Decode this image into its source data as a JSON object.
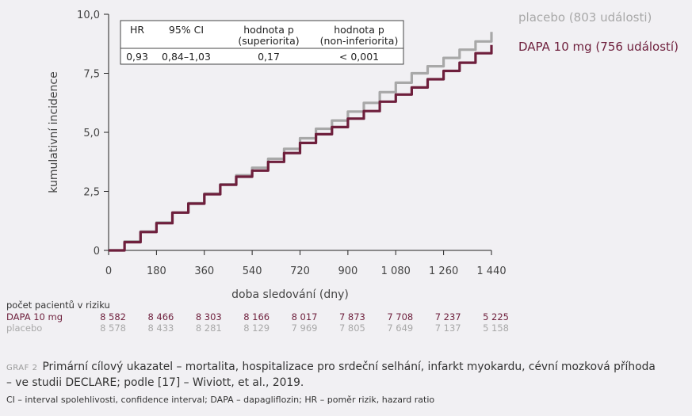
{
  "chart_data": {
    "type": "line",
    "xlabel": "doba sledování (dny)",
    "ylabel": "kumulativní incidence",
    "x_ticks": [
      0,
      180,
      360,
      540,
      720,
      900,
      1080,
      1260,
      1440
    ],
    "x_tick_labels": [
      "0",
      "180",
      "360",
      "540",
      "720",
      "900",
      "1 080",
      "1 260",
      "1 440"
    ],
    "y_ticks": [
      0,
      2.5,
      5.0,
      7.5,
      10.0
    ],
    "y_tick_labels": [
      "0",
      "2,5",
      "5,0",
      "7,5",
      "10,0"
    ],
    "xlim": [
      0,
      1440
    ],
    "ylim": [
      0,
      10
    ],
    "grid": false,
    "legend_position": "top-right",
    "series": [
      {
        "name": "placebo (803 události)",
        "color": "#a8a8a8",
        "x": [
          0,
          60,
          120,
          180,
          240,
          300,
          360,
          420,
          480,
          540,
          600,
          660,
          720,
          780,
          840,
          900,
          960,
          1020,
          1080,
          1140,
          1200,
          1260,
          1320,
          1380,
          1440
        ],
        "y": [
          0,
          0.38,
          0.8,
          1.18,
          1.6,
          2.0,
          2.4,
          2.8,
          3.18,
          3.5,
          3.88,
          4.3,
          4.75,
          5.15,
          5.5,
          5.88,
          6.25,
          6.7,
          7.1,
          7.5,
          7.8,
          8.15,
          8.5,
          8.85,
          9.25
        ]
      },
      {
        "name": "DAPA 10 mg (756 událostí)",
        "color": "#6e1f3c",
        "x": [
          0,
          60,
          120,
          180,
          240,
          300,
          360,
          420,
          480,
          540,
          600,
          660,
          720,
          780,
          840,
          900,
          960,
          1020,
          1080,
          1140,
          1200,
          1260,
          1320,
          1380,
          1440
        ],
        "y": [
          0,
          0.35,
          0.78,
          1.15,
          1.6,
          1.98,
          2.38,
          2.78,
          3.12,
          3.38,
          3.75,
          4.12,
          4.55,
          4.92,
          5.22,
          5.58,
          5.9,
          6.3,
          6.6,
          6.9,
          7.25,
          7.6,
          7.95,
          8.35,
          8.7
        ]
      }
    ],
    "hr_table": {
      "headers": [
        "HR",
        "95% CI",
        "hodnota p (superiorita)",
        "hodnota p (non-inferiorita)"
      ],
      "values": [
        "0,93",
        "0,84–1,03",
        "0,17",
        "< 0,001"
      ]
    }
  },
  "legend": {
    "placebo": "placebo (803 události)",
    "dapa": "DAPA 10 mg (756 událostí)"
  },
  "table": {
    "h_hr": "HR",
    "h_ci": "95% CI",
    "h_sup_1": "hodnota p",
    "h_sup_2": "(superiorita)",
    "h_ninf_1": "hodnota p",
    "h_ninf_2": "(non-inferiorita)",
    "v_hr": "0,93",
    "v_ci": "0,84–1,03",
    "v_sup": "0,17",
    "v_ninf": "< 0,001"
  },
  "risk": {
    "title": "počet pacientů v riziku",
    "rows": [
      {
        "label": "DAPA 10 mg",
        "color": "#6e1f3c",
        "values": [
          "8 582",
          "8 466",
          "8 303",
          "8 166",
          "8 017",
          "7 873",
          "7 708",
          "7 237",
          "5 225"
        ]
      },
      {
        "label": "placebo",
        "color": "#a8a8a8",
        "values": [
          "8 578",
          "8 433",
          "8 281",
          "8 129",
          "7 969",
          "7 805",
          "7 649",
          "7 137",
          "5 158"
        ]
      }
    ]
  },
  "caption": {
    "graf_label": "GRAF 2",
    "text_line1": "Primární cílový ukazatel – mortalita, hospitalizace pro srdeční selhání, infarkt myokardu, cévní mozková příhoda",
    "text_line2": "– ve studii DECLARE; podle [17] – Wiviott, et al., 2019.",
    "footnote": "CI – interval spolehlivosti, confidence interval; DAPA – dapagliflozin; HR – poměr rizik, hazard ratio"
  }
}
